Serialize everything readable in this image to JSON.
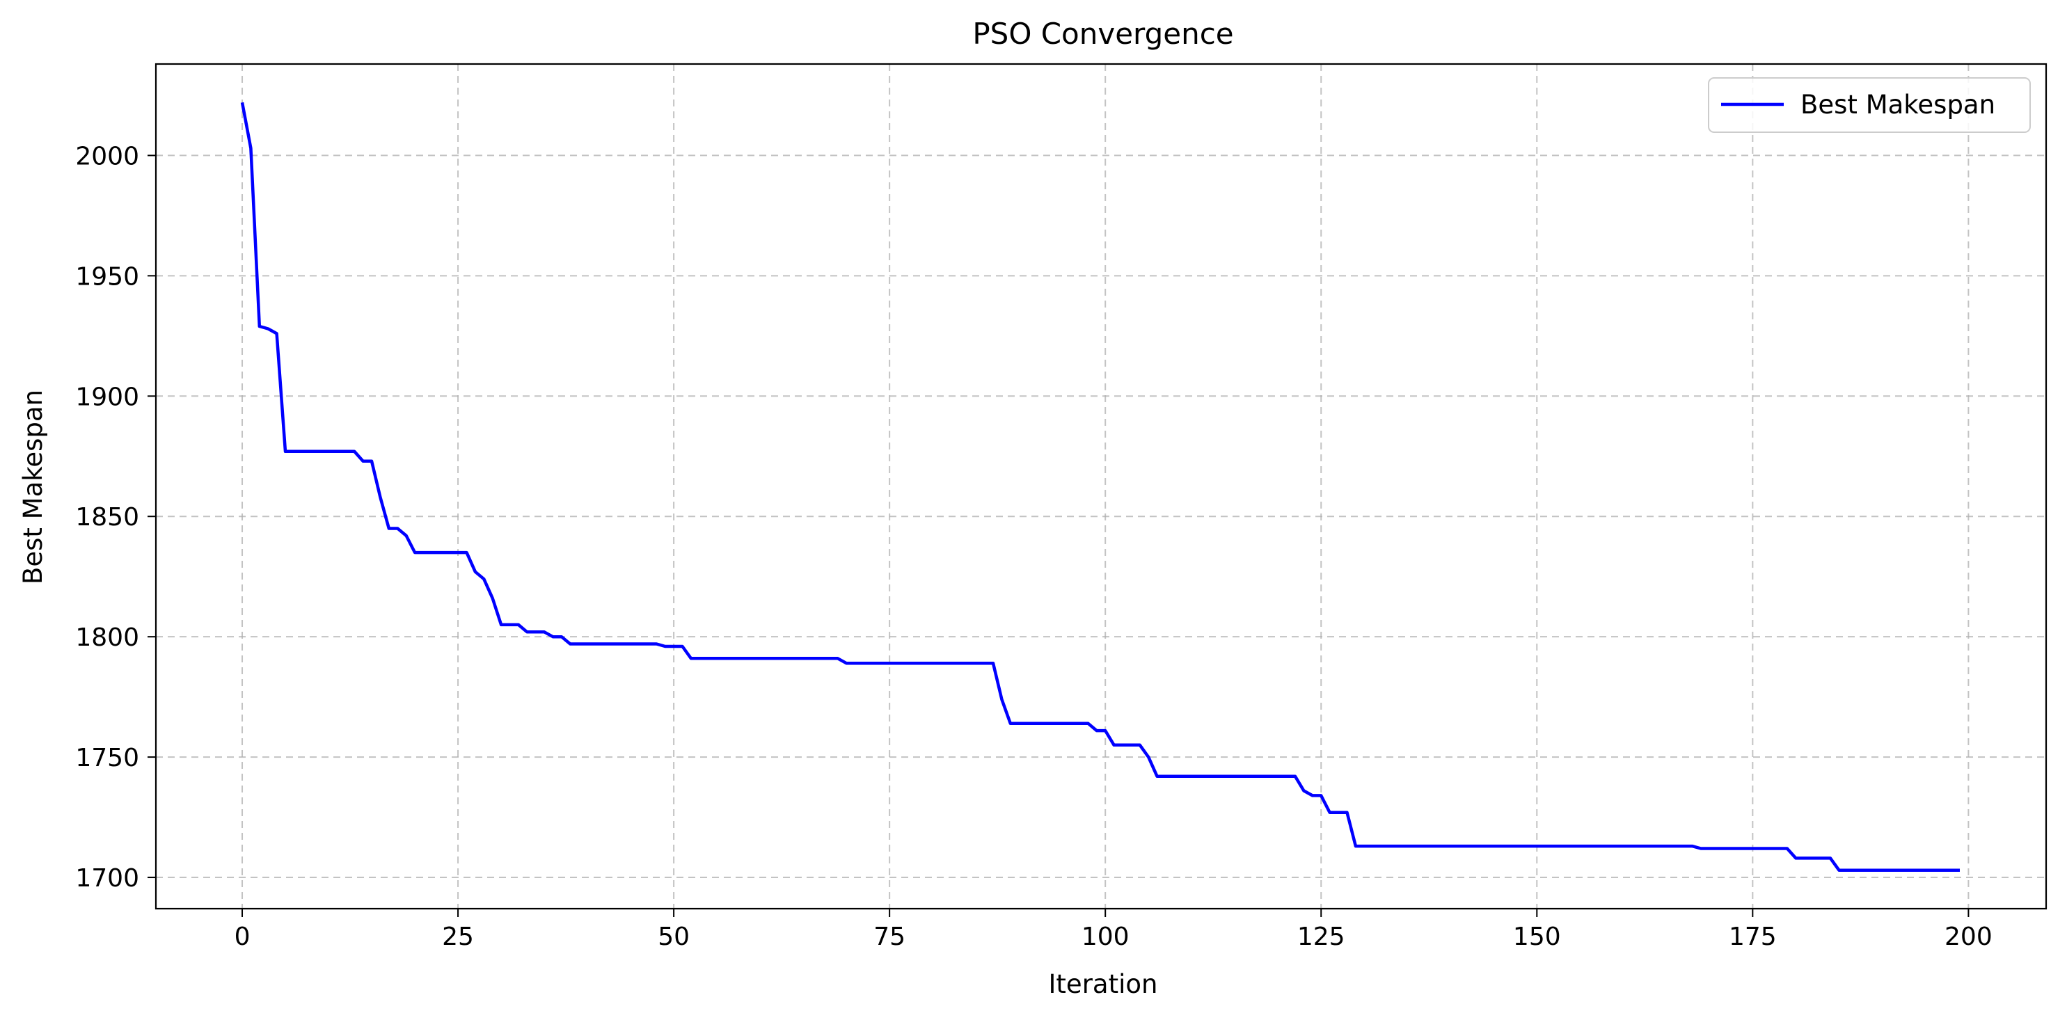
{
  "chart_data": {
    "type": "line",
    "title": "PSO Convergence",
    "xlabel": "Iteration",
    "ylabel": "Best Makespan",
    "xlim": [
      -10,
      209
    ],
    "ylim": [
      1687,
      2038
    ],
    "xticks": [
      0,
      25,
      50,
      75,
      100,
      125,
      150,
      175,
      200
    ],
    "yticks": [
      1700,
      1750,
      1800,
      1850,
      1900,
      1950,
      2000
    ],
    "xtick_labels": [
      "0",
      "25",
      "50",
      "75",
      "100",
      "125",
      "150",
      "175",
      "200"
    ],
    "ytick_labels": [
      "1700",
      "1750",
      "1800",
      "1850",
      "1900",
      "1950",
      "2000"
    ],
    "grid": true,
    "legend_position": "top-right",
    "colors": {
      "series": "#0000ff",
      "grid": "#b0b0b0",
      "axes": "#000000"
    },
    "series": [
      {
        "name": "Best Makespan",
        "points": [
          [
            0,
            2022
          ],
          [
            1,
            2003
          ],
          [
            2,
            1929
          ],
          [
            3,
            1928
          ],
          [
            4,
            1926
          ],
          [
            5,
            1877
          ],
          [
            13,
            1877
          ],
          [
            14,
            1873
          ],
          [
            15,
            1873
          ],
          [
            16,
            1858
          ],
          [
            17,
            1845
          ],
          [
            18,
            1845
          ],
          [
            19,
            1842
          ],
          [
            20,
            1835
          ],
          [
            26,
            1835
          ],
          [
            27,
            1827
          ],
          [
            28,
            1824
          ],
          [
            29,
            1816
          ],
          [
            30,
            1805
          ],
          [
            32,
            1805
          ],
          [
            33,
            1802
          ],
          [
            35,
            1802
          ],
          [
            36,
            1800
          ],
          [
            37,
            1800
          ],
          [
            38,
            1797
          ],
          [
            48,
            1797
          ],
          [
            49,
            1796
          ],
          [
            51,
            1796
          ],
          [
            52,
            1791
          ],
          [
            69,
            1791
          ],
          [
            70,
            1789
          ],
          [
            87,
            1789
          ],
          [
            88,
            1774
          ],
          [
            89,
            1764
          ],
          [
            98,
            1764
          ],
          [
            99,
            1761
          ],
          [
            100,
            1761
          ],
          [
            101,
            1755
          ],
          [
            104,
            1755
          ],
          [
            105,
            1750
          ],
          [
            106,
            1742
          ],
          [
            122,
            1742
          ],
          [
            123,
            1736
          ],
          [
            124,
            1734
          ],
          [
            125,
            1734
          ],
          [
            126,
            1727
          ],
          [
            128,
            1727
          ],
          [
            129,
            1713
          ],
          [
            168,
            1713
          ],
          [
            169,
            1712
          ],
          [
            179,
            1712
          ],
          [
            180,
            1708
          ],
          [
            184,
            1708
          ],
          [
            185,
            1703
          ],
          [
            199,
            1703
          ]
        ]
      }
    ]
  }
}
